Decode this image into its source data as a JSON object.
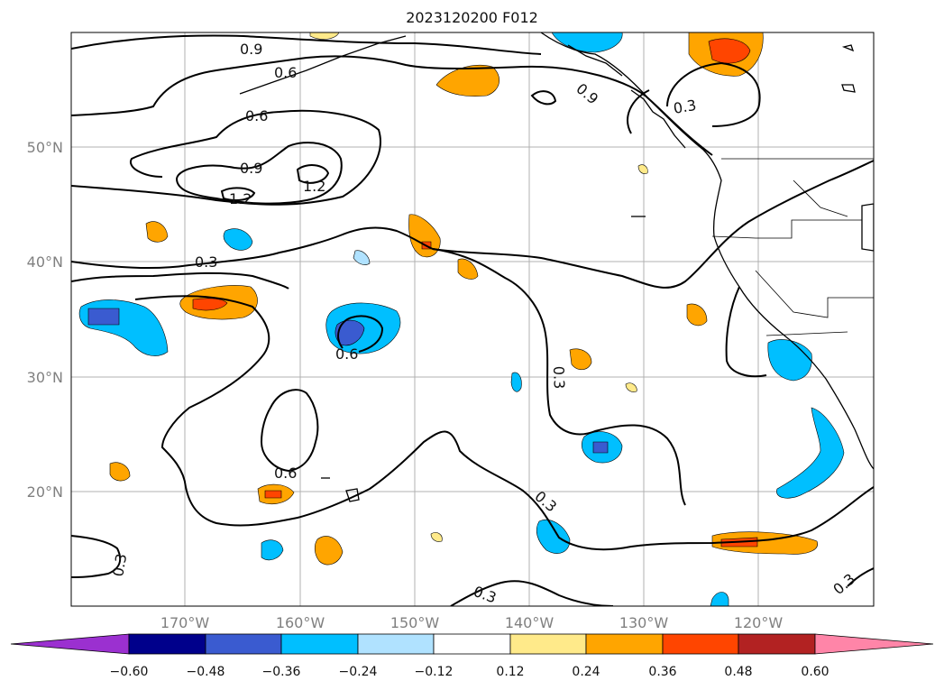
{
  "title": "2023120200 F012",
  "lat_labels": [
    "50°N",
    "40°N",
    "30°N",
    "20°N"
  ],
  "lon_labels": [
    "170°W",
    "160°W",
    "150°W",
    "140°W",
    "130°W",
    "120°W"
  ],
  "contour_labels": [
    "0.9",
    "0.6",
    "0.6",
    "0.9",
    "1.2",
    "1.2",
    "0.3",
    "0.6",
    "0.6",
    "0.3",
    "0.3",
    "0.3",
    "0.3",
    "0.3",
    "0.9",
    "0.3"
  ],
  "colorbar": {
    "ticks": [
      "−0.60",
      "−0.48",
      "−0.36",
      "−0.24",
      "−0.12",
      "0.12",
      "0.24",
      "0.36",
      "0.48",
      "0.60"
    ],
    "colors": {
      "under": "#9b30d0",
      "neg_060_048": "#00008b",
      "neg_048_036": "#3a5bd0",
      "neg_036_024": "#00bfff",
      "neg_024_012": "#b0e2ff",
      "neutral": "#ffffff",
      "pos_012_024": "#ffea8a",
      "pos_024_036": "#ffa500",
      "pos_036_048": "#ff4500",
      "pos_048_060": "#b22222",
      "over": "#ff85a8"
    }
  }
}
